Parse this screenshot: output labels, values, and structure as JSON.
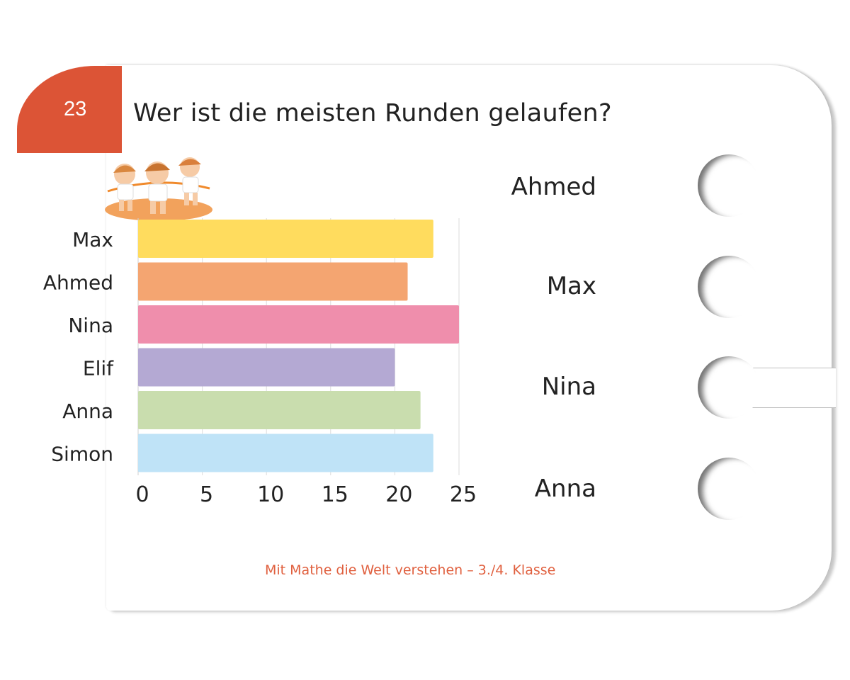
{
  "card": {
    "number": "23",
    "question": "Wer ist die meisten Runden gelaufen?"
  },
  "answers": [
    {
      "label": "Ahmed"
    },
    {
      "label": "Max"
    },
    {
      "label": "Nina"
    },
    {
      "label": "Anna"
    }
  ],
  "footer": "Mit Mathe die Welt verstehen  –  3./4. Klasse",
  "chart_data": {
    "type": "bar",
    "orientation": "horizontal",
    "categories": [
      "Max",
      "Ahmed",
      "Nina",
      "Elif",
      "Anna",
      "Simon"
    ],
    "values": [
      23,
      21,
      25,
      20,
      22,
      23
    ],
    "colors": [
      "#ffdc5e",
      "#f4a571",
      "#ef8eac",
      "#b4a9d3",
      "#c9ddae",
      "#bfe3f7"
    ],
    "xlim": [
      0,
      25
    ],
    "xticks": [
      0,
      5,
      10,
      15,
      20,
      25
    ],
    "grid": true
  }
}
